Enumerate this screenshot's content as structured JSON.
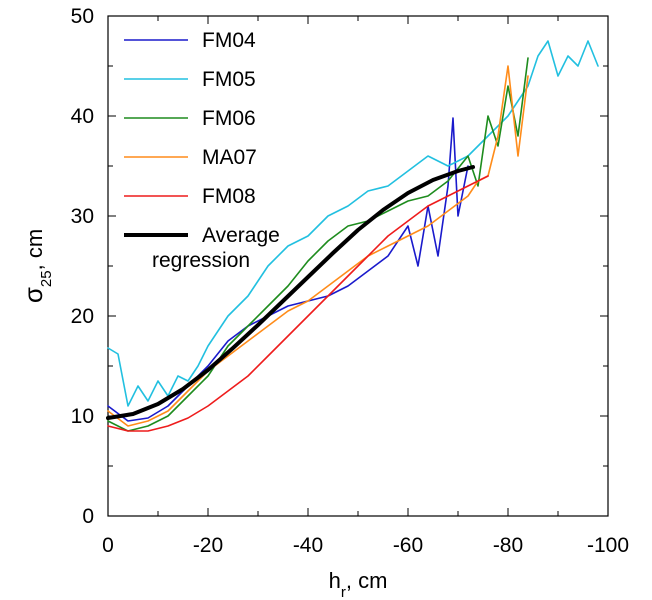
{
  "chart_data": {
    "type": "line",
    "title": "",
    "xlabel": {
      "main": "h",
      "sub": "r",
      "unit": ", cm"
    },
    "ylabel": {
      "main": "σ",
      "sub": "25",
      "unit": ", cm"
    },
    "xlim": [
      0,
      -100
    ],
    "ylim": [
      0,
      50
    ],
    "xticks": [
      0,
      -20,
      -40,
      -60,
      -80,
      -100
    ],
    "yticks": [
      0,
      10,
      20,
      30,
      40,
      50
    ],
    "grid": false,
    "legend_position": "top-left",
    "series": [
      {
        "name": "FM04",
        "color": "#1a1acc",
        "x": [
          0,
          -4,
          -8,
          -12,
          -16,
          -20,
          -24,
          -28,
          -32,
          -36,
          -40,
          -44,
          -48,
          -52,
          -56,
          -60,
          -62,
          -64,
          -66,
          -68,
          -69,
          -70,
          -72
        ],
        "y": [
          11,
          9.5,
          9.8,
          11,
          13,
          15,
          17.5,
          19,
          20,
          21,
          21.5,
          22,
          23,
          24.5,
          26,
          29,
          25,
          31,
          26,
          33,
          39.8,
          30,
          35
        ]
      },
      {
        "name": "FM05",
        "color": "#22c0e0",
        "x": [
          0,
          -2,
          -4,
          -6,
          -8,
          -10,
          -12,
          -14,
          -16,
          -18,
          -20,
          -24,
          -28,
          -32,
          -36,
          -40,
          -44,
          -48,
          -52,
          -56,
          -60,
          -64,
          -68,
          -72,
          -76,
          -80,
          -84,
          -86,
          -88,
          -90,
          -92,
          -94,
          -96,
          -98
        ],
        "y": [
          16.8,
          16.2,
          11,
          13,
          11.5,
          13.5,
          12,
          14,
          13.5,
          15,
          17,
          20,
          22,
          25,
          27,
          28,
          30,
          31,
          32.5,
          33,
          34.5,
          36,
          35,
          36,
          38,
          40,
          43,
          46,
          47.5,
          44,
          46,
          45,
          47.5,
          45
        ]
      },
      {
        "name": "FM06",
        "color": "#1e8c1e",
        "x": [
          0,
          -4,
          -8,
          -12,
          -16,
          -20,
          -24,
          -28,
          -32,
          -36,
          -40,
          -44,
          -48,
          -52,
          -56,
          -60,
          -64,
          -68,
          -72,
          -74,
          -76,
          -78,
          -80,
          -82,
          -84
        ],
        "y": [
          9.5,
          8.5,
          9,
          10,
          12,
          14,
          17,
          19,
          21,
          23,
          25.5,
          27.5,
          29,
          29.5,
          30.5,
          31.5,
          32,
          33.5,
          36,
          33,
          40,
          37,
          43,
          38,
          45.8
        ]
      },
      {
        "name": "MA07",
        "color": "#ff8c1a",
        "x": [
          0,
          -4,
          -8,
          -12,
          -16,
          -20,
          -24,
          -28,
          -32,
          -36,
          -40,
          -44,
          -48,
          -52,
          -56,
          -60,
          -64,
          -68,
          -72,
          -74,
          -76,
          -78,
          -80,
          -82,
          -84
        ],
        "y": [
          10.5,
          9,
          9.5,
          10.5,
          12.5,
          14.5,
          16,
          17.5,
          19,
          20.5,
          21.5,
          23,
          24.5,
          26,
          27,
          28,
          29,
          30.5,
          32,
          33.5,
          34,
          38,
          45,
          36,
          44
        ]
      },
      {
        "name": "FM08",
        "color": "#ee1c1c",
        "x": [
          0,
          -4,
          -8,
          -12,
          -16,
          -20,
          -24,
          -28,
          -32,
          -36,
          -40,
          -44,
          -48,
          -52,
          -56,
          -60,
          -64,
          -68,
          -72,
          -76
        ],
        "y": [
          9,
          8.5,
          8.5,
          9,
          9.8,
          11,
          12.5,
          14,
          16,
          18,
          20,
          22,
          24,
          26,
          28,
          29.5,
          31,
          32,
          33,
          34
        ]
      },
      {
        "name": "Average\nregression",
        "color": "#000000",
        "x": [
          0,
          -5,
          -10,
          -15,
          -20,
          -25,
          -30,
          -35,
          -40,
          -45,
          -50,
          -55,
          -60,
          -65,
          -70,
          -73
        ],
        "y": [
          9.8,
          10.2,
          11.2,
          12.7,
          14.6,
          16.8,
          19.1,
          21.5,
          23.9,
          26.3,
          28.6,
          30.6,
          32.3,
          33.6,
          34.5,
          34.9
        ]
      }
    ]
  }
}
